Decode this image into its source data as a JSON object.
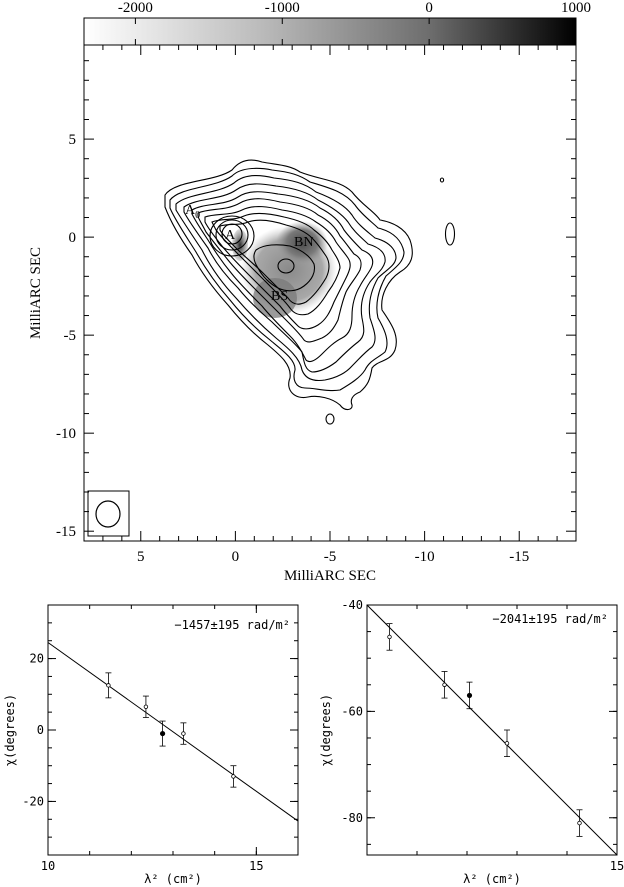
{
  "chart_data": [
    {
      "type": "heatmap",
      "title": "",
      "colorbar": {
        "ticks": [
          -2000,
          -1000,
          0,
          1000
        ],
        "tick_labels": [
          "-2000",
          "-1000",
          "0",
          "1000"
        ],
        "range": [
          -2350,
          1000
        ],
        "colormap": "white-to-black"
      },
      "xlabel": "MilliARC SEC",
      "ylabel": "MilliARC SEC",
      "xlim": [
        8,
        -18
      ],
      "ylim": [
        -15.5,
        9.8
      ],
      "x_ticks": [
        5,
        0,
        -5,
        -10,
        -15
      ],
      "y_ticks": [
        5,
        0,
        -5,
        -10,
        -15
      ],
      "components": [
        {
          "label": "A0",
          "text": "A",
          "sub": "0",
          "x": 1.4,
          "y": 1.2
        },
        {
          "label": "A",
          "text": "A",
          "x": 0.0,
          "y": 0.1
        },
        {
          "label": "BN",
          "text": "BN",
          "x": -3.8,
          "y": -0.3
        },
        {
          "label": "BS",
          "text": "BS",
          "x": -2.6,
          "y": -3.2
        }
      ],
      "beam": {
        "major": 2.2,
        "minor": 2.0
      },
      "grid": false
    },
    {
      "type": "scatter",
      "annotation": "−1457±195 rad/m²",
      "xlabel": "λ² (cm²)",
      "ylabel": "χ(degrees)",
      "xlim": [
        10,
        16
      ],
      "ylim": [
        -35,
        35
      ],
      "x_ticks": [
        10,
        15
      ],
      "y_ticks": [
        20,
        0,
        -20
      ],
      "points": [
        {
          "x": 11.45,
          "y": 12.5,
          "err": 3.5,
          "filled": false
        },
        {
          "x": 12.35,
          "y": 6.5,
          "err": 3.0,
          "filled": false
        },
        {
          "x": 12.75,
          "y": -1.0,
          "err": 3.5,
          "filled": true
        },
        {
          "x": 13.25,
          "y": -1.0,
          "err": 3.0,
          "filled": false
        },
        {
          "x": 14.45,
          "y": -13.0,
          "err": 3.0,
          "filled": false
        }
      ],
      "fit_line": {
        "x": [
          10,
          16
        ],
        "y": [
          24.5,
          -25.5
        ]
      },
      "grid": false
    },
    {
      "type": "scatter",
      "annotation": "−2041±195 rad/m²",
      "xlabel": "λ² (cm²)",
      "ylabel": "χ(degrees)",
      "xlim": [
        10,
        15
      ],
      "ylim": [
        -87,
        -40
      ],
      "x_ticks": [
        15
      ],
      "y_ticks": [
        -40,
        -60,
        -80
      ],
      "points": [
        {
          "x": 10.45,
          "y": -46,
          "err": 2.5,
          "filled": false
        },
        {
          "x": 11.55,
          "y": -55,
          "err": 2.5,
          "filled": false
        },
        {
          "x": 12.05,
          "y": -57,
          "err": 2.5,
          "filled": true
        },
        {
          "x": 12.8,
          "y": -66,
          "err": 2.5,
          "filled": false
        },
        {
          "x": 14.25,
          "y": -81,
          "err": 2.5,
          "filled": false
        }
      ],
      "fit_line": {
        "x": [
          10,
          15
        ],
        "y": [
          -40,
          -87
        ]
      },
      "grid": false
    }
  ]
}
